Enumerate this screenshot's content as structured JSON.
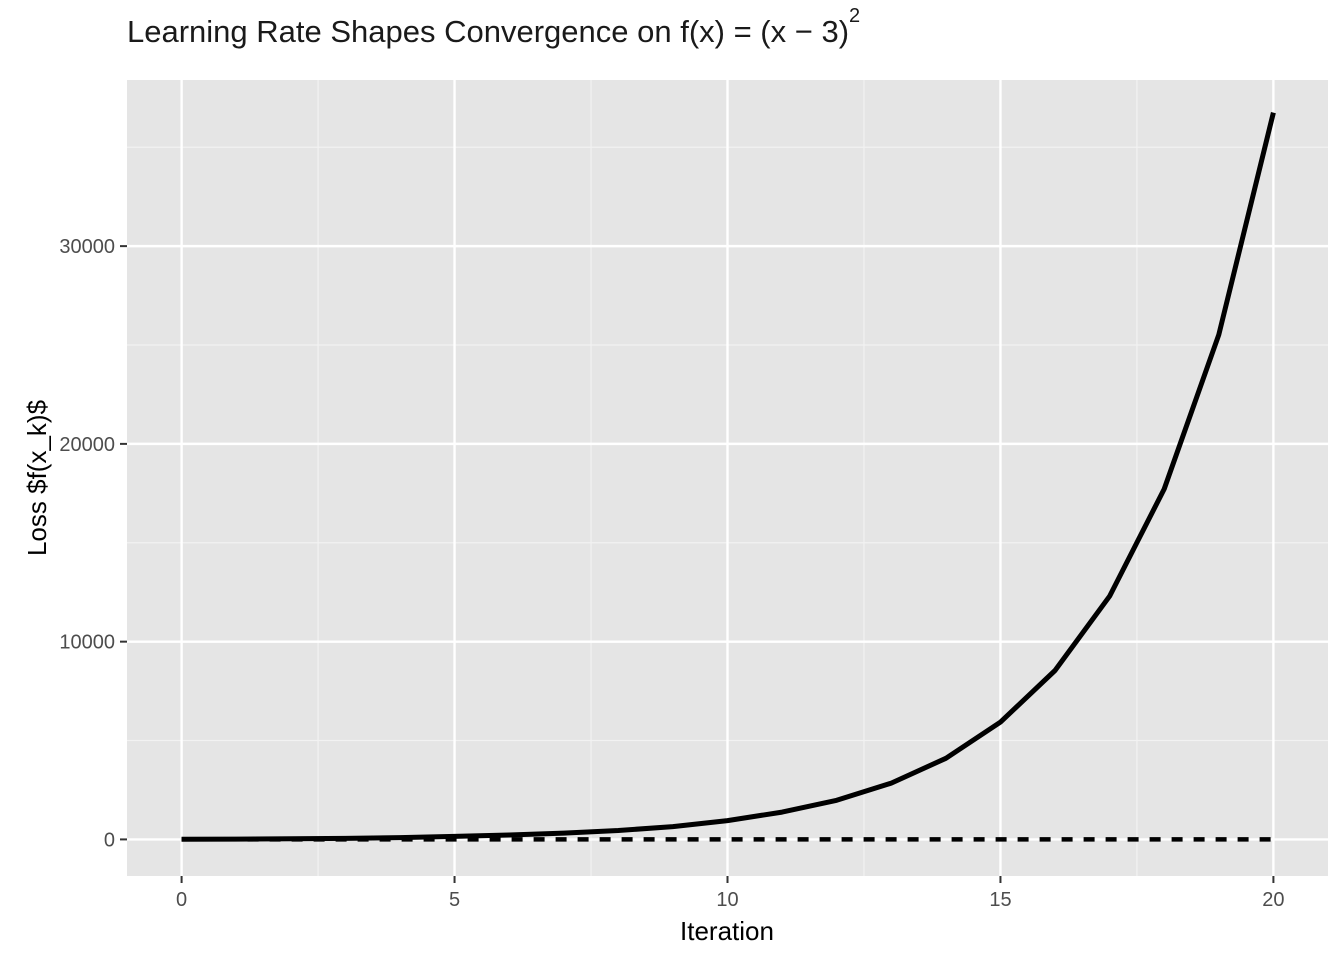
{
  "chart_data": {
    "type": "line",
    "title_text": "Learning Rate Shapes Convergence on ",
    "title_math": "f(x) = (x − 3)",
    "title_sup": "2",
    "xlabel": "Iteration",
    "ylabel": "Loss $f(x_k)$",
    "xlim": [
      -1,
      21
    ],
    "ylim": [
      -1850,
      38400
    ],
    "x_ticks": [
      0,
      5,
      10,
      15,
      20
    ],
    "y_ticks": [
      0,
      10000,
      20000,
      30000
    ],
    "x_minor": [
      2.5,
      7.5,
      12.5,
      17.5
    ],
    "y_minor": [
      5000,
      15000,
      25000,
      35000
    ],
    "grid": true,
    "legend": "none",
    "series": [
      {
        "style": "solid",
        "color": "#000000",
        "x": [
          0,
          1,
          2,
          3,
          4,
          5,
          6,
          7,
          8,
          9,
          10,
          11,
          12,
          13,
          14,
          15,
          16,
          17,
          18,
          19,
          20
        ],
        "y": [
          9,
          18,
          30,
          50,
          90,
          150,
          225,
          320,
          450,
          650,
          950,
          1380,
          1980,
          2850,
          4100,
          5930,
          8540,
          12300,
          17720,
          25520,
          36750
        ]
      },
      {
        "style": "dashed",
        "color": "#000000",
        "x": [
          0,
          1,
          2,
          3,
          4,
          5,
          6,
          7,
          8,
          9,
          10,
          11,
          12,
          13,
          14,
          15,
          16,
          17,
          18,
          19,
          20
        ],
        "y": [
          9,
          5,
          2,
          1,
          0.5,
          0.2,
          0.1,
          0,
          0,
          0,
          0,
          0,
          0,
          0,
          0,
          0,
          0,
          0,
          0,
          0,
          0
        ]
      }
    ]
  }
}
